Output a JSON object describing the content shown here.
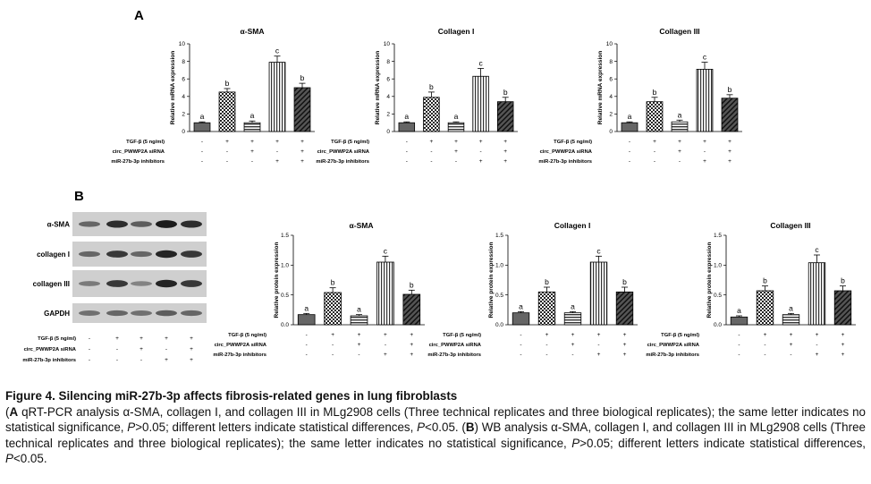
{
  "panel_a_label": "A",
  "panel_b_label": "B",
  "treatment_rows": [
    "TGF-β (5 ng/ml)",
    "circ_PWWP2A siRNA",
    "miR-27b-3p inhibitors"
  ],
  "treatment_signs": [
    [
      "-",
      "+",
      "+",
      "+",
      "+"
    ],
    [
      "-",
      "-",
      "+",
      "-",
      "+"
    ],
    [
      "-",
      "-",
      "-",
      "+",
      "+"
    ]
  ],
  "chart_data": [
    {
      "type": "bar",
      "panel": "A",
      "title": "α-SMA",
      "ylabel": "Relative mRNA expression",
      "ylim": [
        0,
        10
      ],
      "yticks": [
        "0",
        "2",
        "4",
        "6",
        "8",
        "10"
      ],
      "values": [
        1.0,
        4.5,
        1.0,
        7.9,
        5.0
      ],
      "errors": [
        0.1,
        0.4,
        0.2,
        0.7,
        0.5
      ],
      "labels": [
        "a",
        "b",
        "a",
        "c",
        "b"
      ]
    },
    {
      "type": "bar",
      "panel": "A",
      "title": "Collagen I",
      "ylabel": "Relative mRNA expression",
      "ylim": [
        0,
        10
      ],
      "yticks": [
        "0",
        "2",
        "4",
        "6",
        "8",
        "10"
      ],
      "values": [
        1.0,
        3.9,
        1.0,
        6.3,
        3.4
      ],
      "errors": [
        0.1,
        0.6,
        0.1,
        0.9,
        0.5
      ],
      "labels": [
        "a",
        "b",
        "a",
        "c",
        "b"
      ]
    },
    {
      "type": "bar",
      "panel": "A",
      "title": "Collagen III",
      "ylabel": "Relative mRNA expression",
      "ylim": [
        0,
        10
      ],
      "yticks": [
        "0",
        "2",
        "4",
        "6",
        "8",
        "10"
      ],
      "values": [
        1.0,
        3.4,
        1.1,
        7.1,
        3.8
      ],
      "errors": [
        0.1,
        0.5,
        0.2,
        0.8,
        0.4
      ],
      "labels": [
        "a",
        "b",
        "a",
        "c",
        "b"
      ]
    },
    {
      "type": "bar",
      "panel": "B",
      "title": "α-SMA",
      "ylabel": "Relative protein expression",
      "ylim": [
        0,
        1.5
      ],
      "yticks": [
        "0.0",
        "0.5",
        "1.0",
        "1.5"
      ],
      "values": [
        0.17,
        0.54,
        0.15,
        1.05,
        0.51
      ],
      "errors": [
        0.02,
        0.08,
        0.02,
        0.1,
        0.07
      ],
      "labels": [
        "a",
        "b",
        "a",
        "c",
        "b"
      ]
    },
    {
      "type": "bar",
      "panel": "B",
      "title": "Collagen I",
      "ylabel": "Relative protein expression",
      "ylim": [
        0,
        1.5
      ],
      "yticks": [
        "0.0",
        "0.5",
        "1.0",
        "1.5"
      ],
      "values": [
        0.2,
        0.55,
        0.2,
        1.05,
        0.55
      ],
      "errors": [
        0.02,
        0.08,
        0.02,
        0.1,
        0.08
      ],
      "labels": [
        "a",
        "b",
        "a",
        "c",
        "b"
      ]
    },
    {
      "type": "bar",
      "panel": "B",
      "title": "Collagen III",
      "ylabel": "Relative protein expression",
      "ylim": [
        0,
        1.5
      ],
      "yticks": [
        "0.0",
        "0.5",
        "1.0",
        "1.5"
      ],
      "values": [
        0.13,
        0.57,
        0.17,
        1.04,
        0.57
      ],
      "errors": [
        0.02,
        0.08,
        0.02,
        0.13,
        0.08
      ],
      "labels": [
        "a",
        "b",
        "a",
        "c",
        "b"
      ]
    }
  ],
  "western_blot": {
    "rows": [
      "α-SMA",
      "collagen I",
      "collagen III",
      "GAPDH"
    ],
    "intensity": [
      [
        0.55,
        0.85,
        0.6,
        0.95,
        0.85
      ],
      [
        0.55,
        0.8,
        0.55,
        0.9,
        0.8
      ],
      [
        0.45,
        0.8,
        0.4,
        0.9,
        0.8
      ],
      [
        0.5,
        0.55,
        0.5,
        0.6,
        0.55
      ]
    ]
  },
  "caption": {
    "title": "Figure 4. Silencing miR-27b-3p affects fibrosis-related genes in lung fibroblasts",
    "body_a_letter": "A",
    "body_a": " qRT-PCR analysis α-SMA, collagen I, and collagen III in MLg2908 cells (Three technical replicates and three biological replicates); the same letter indicates no statistical significance, ",
    "p1": "P",
    "gt": ">0.05; different letters indicate statistical differences, ",
    "p2": "P",
    "lt_a": "<0.05. (",
    "body_b_letter": "B",
    "body_b": ") WB analysis α-SMA, collagen I, and collagen III in MLg2908 cells (Three technical replicates and three biological replicates); the same letter indicates no statistical significance, ",
    "p3": "P",
    "gt2": ">0.05; different letters indicate statistical differences, ",
    "p4": "P",
    "lt_b": "<0.05."
  }
}
